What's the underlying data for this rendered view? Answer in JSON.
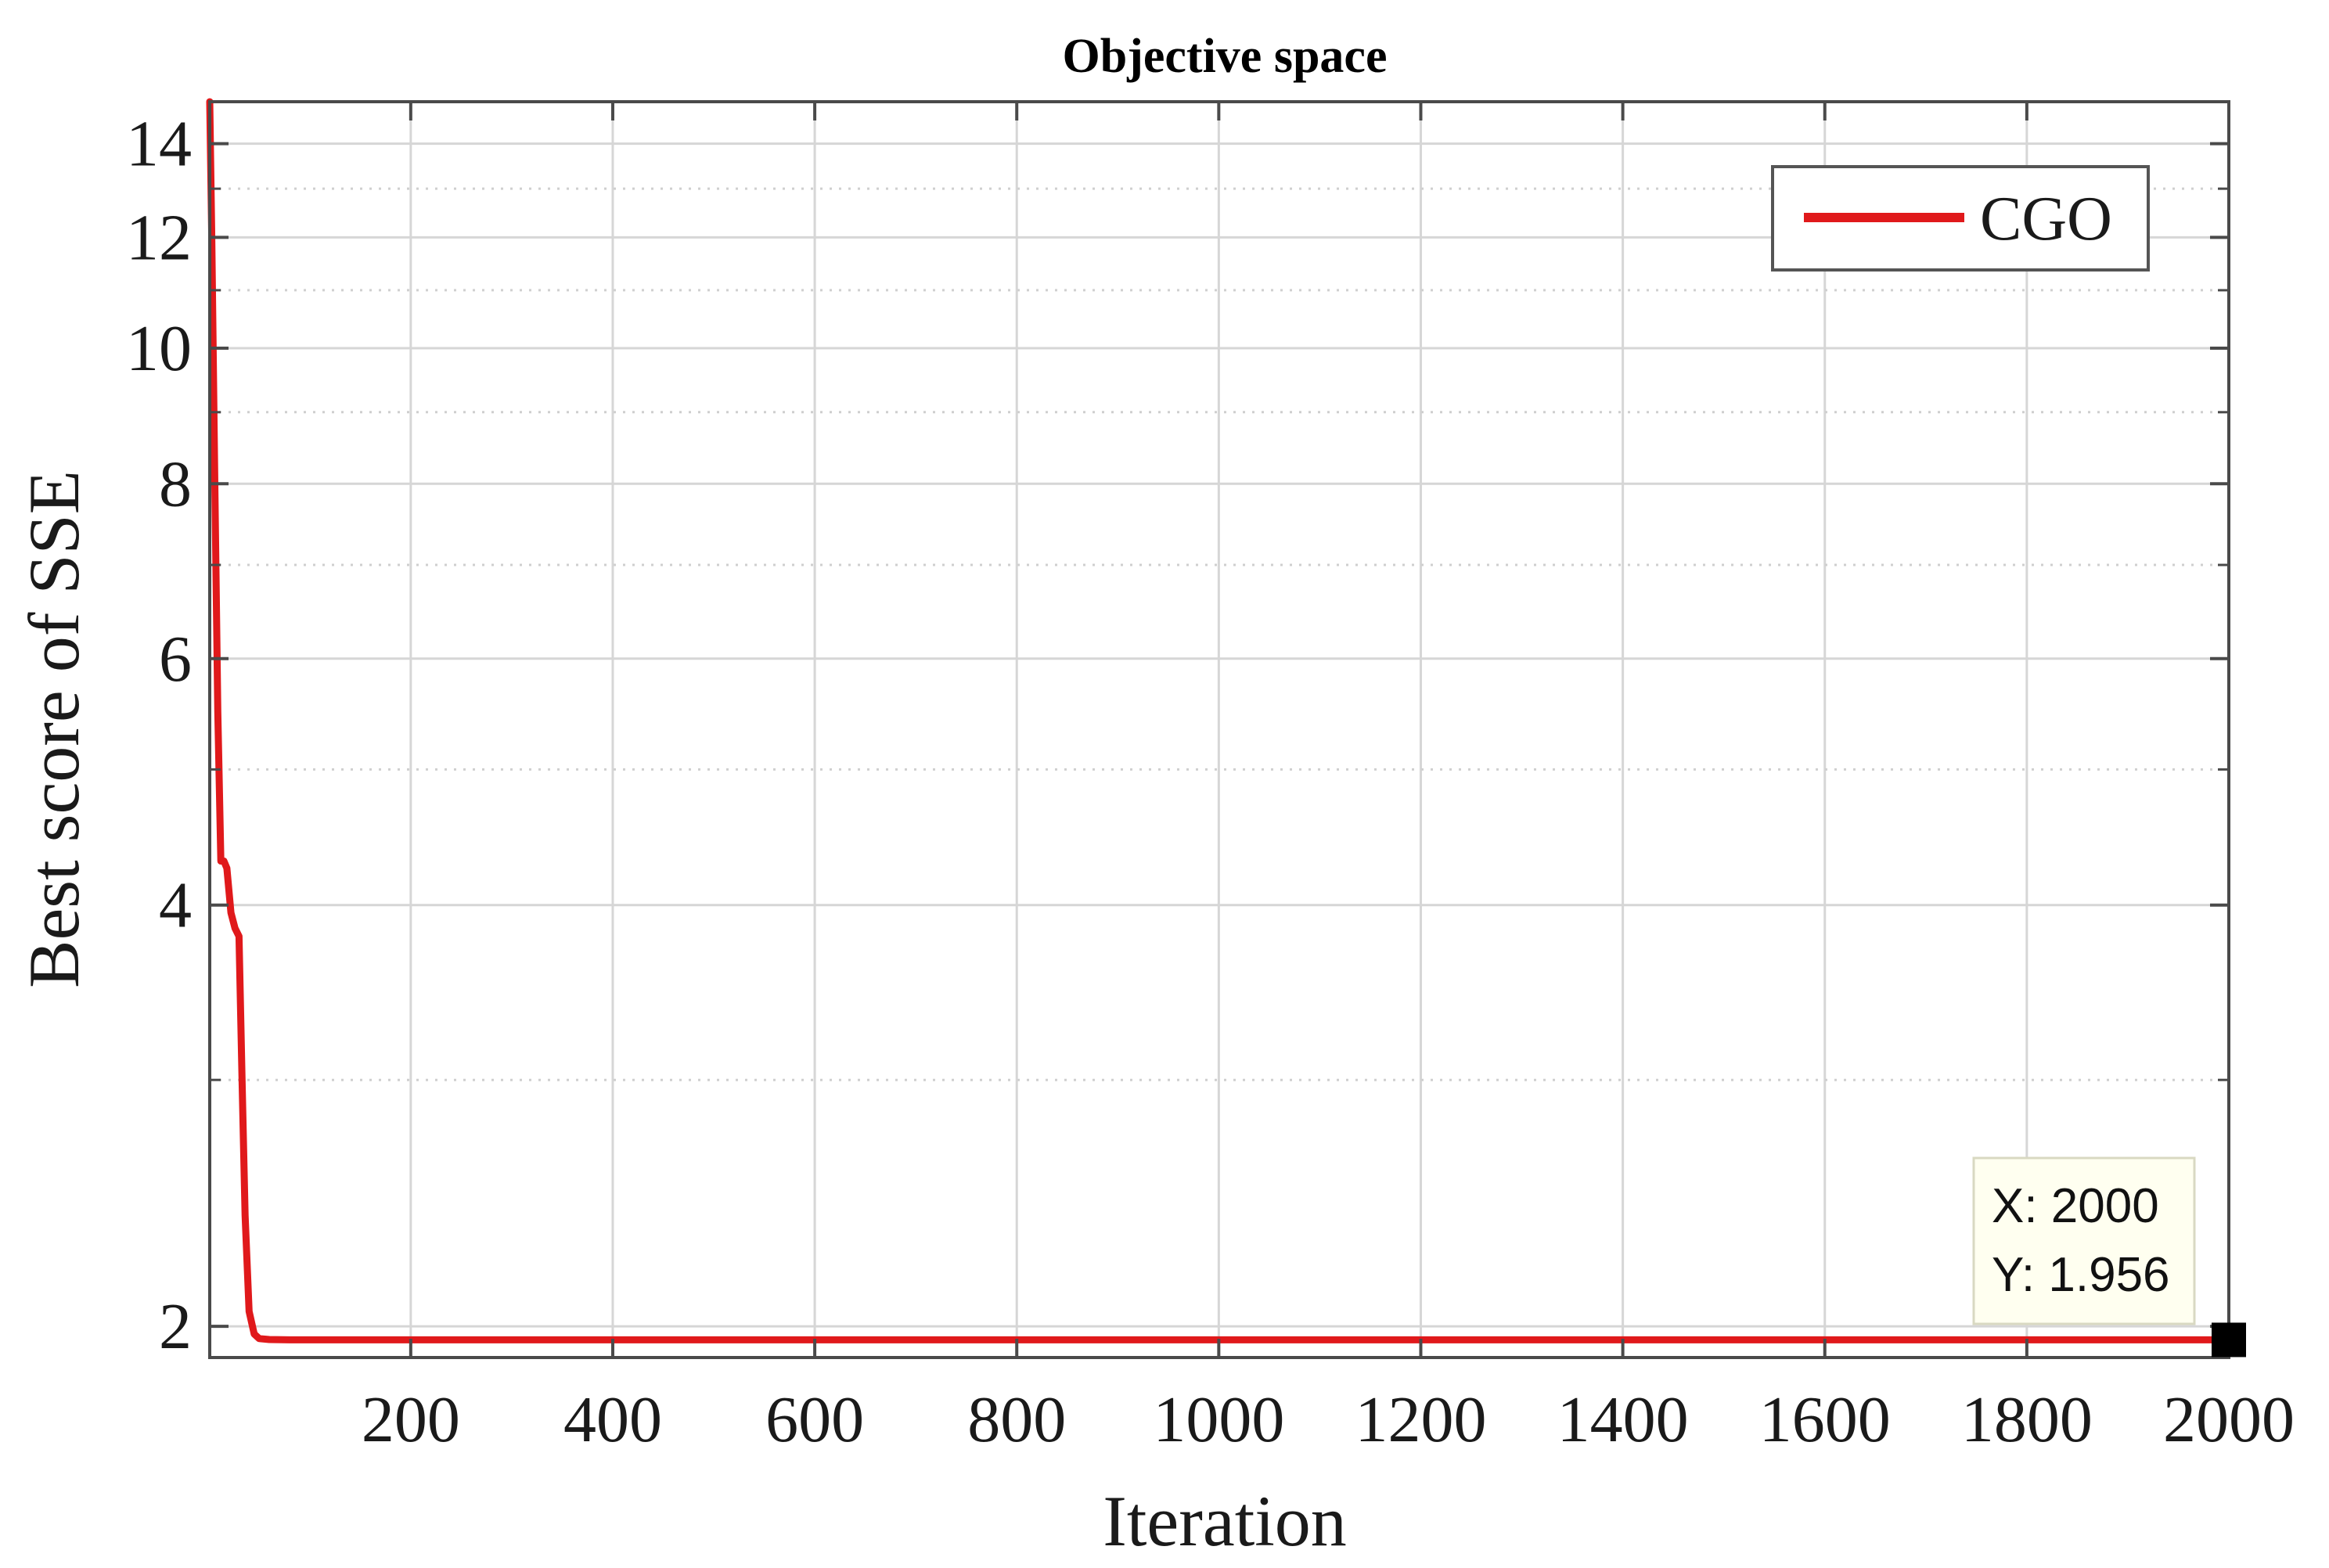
{
  "chart_data": {
    "type": "line",
    "title": "Objective space",
    "xlabel": "Iteration",
    "ylabel": "Best score of SSE",
    "xlim": [
      1,
      2000
    ],
    "ylim": [
      1.9,
      15
    ],
    "yscale": "log",
    "xticks": [
      200,
      400,
      600,
      800,
      1000,
      1200,
      1400,
      1600,
      1800,
      2000
    ],
    "yticks": [
      2,
      4,
      6,
      8,
      10,
      12,
      14
    ],
    "grid": true,
    "legend_position": "top-right",
    "series": [
      {
        "name": "CGO",
        "color": "#e0191b",
        "x": [
          1,
          3,
          6,
          9,
          12,
          15,
          18,
          22,
          26,
          30,
          33,
          36,
          40,
          45,
          50,
          60,
          80,
          150,
          500,
          1000,
          1500,
          2000
        ],
        "y": [
          15,
          12,
          8,
          5.5,
          4.3,
          4.3,
          4.25,
          3.95,
          3.85,
          3.8,
          3.0,
          2.4,
          2.05,
          1.975,
          1.96,
          1.957,
          1.956,
          1.956,
          1.956,
          1.956,
          1.956,
          1.956
        ]
      }
    ],
    "datatip": {
      "x_text": "X: 2000",
      "y_text": "Y: 1.956",
      "x": 2000,
      "y": 1.956
    }
  }
}
